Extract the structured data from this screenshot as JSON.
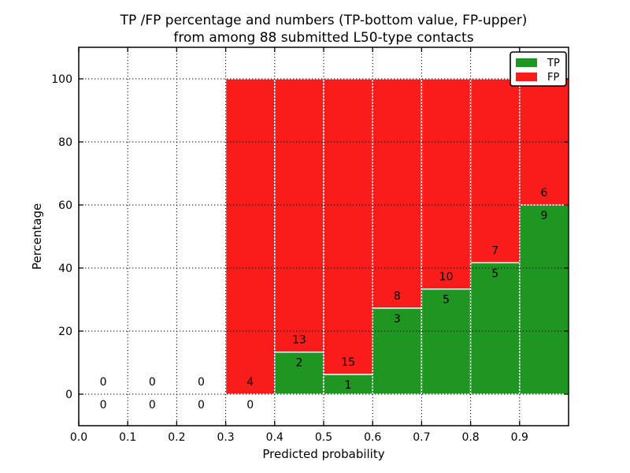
{
  "chart_data": {
    "type": "bar",
    "stacked": true,
    "title_line1": "TP /FP percentage and numbers (TP-bottom value, FP-upper)",
    "title_line2": "from among 88 submitted L50-type contacts",
    "xlabel": "Predicted probability",
    "ylabel": "Percentage",
    "xlim": [
      0.0,
      1.0
    ],
    "ylim": [
      -10,
      110
    ],
    "bin_width": 0.1,
    "bin_starts": [
      0.0,
      0.1,
      0.2,
      0.3,
      0.4,
      0.5,
      0.6,
      0.7,
      0.8,
      0.9
    ],
    "x_tick_values": [
      0.0,
      0.1,
      0.2,
      0.3,
      0.4,
      0.5,
      0.6,
      0.7,
      0.8,
      0.9
    ],
    "x_tick_labels": [
      "0.0",
      "0.1",
      "0.2",
      "0.3",
      "0.4",
      "0.5",
      "0.6",
      "0.7",
      "0.8",
      "0.9"
    ],
    "y_tick_values": [
      0,
      20,
      40,
      60,
      80,
      100
    ],
    "y_tick_labels": [
      "0",
      "20",
      "40",
      "60",
      "80",
      "100"
    ],
    "grid": {
      "style": "dotted",
      "color": "#000000",
      "axes": "both"
    },
    "total_contacts": 88,
    "series": [
      {
        "name": "TP",
        "color": "#1f9621",
        "counts": [
          0,
          0,
          0,
          0,
          2,
          1,
          3,
          5,
          5,
          9
        ],
        "percent": [
          0,
          0,
          0,
          0,
          13.33,
          6.25,
          27.27,
          33.33,
          41.67,
          60.0
        ]
      },
      {
        "name": "FP",
        "color": "#fa1c1a",
        "counts": [
          0,
          0,
          0,
          4,
          13,
          15,
          8,
          10,
          7,
          6
        ],
        "percent": [
          0,
          0,
          0,
          100,
          86.67,
          93.75,
          72.73,
          66.67,
          58.33,
          40.0
        ]
      }
    ],
    "legend": {
      "position": "upper right",
      "entries": [
        {
          "label": "TP",
          "color": "#1f9621"
        },
        {
          "label": "FP",
          "color": "#fa1c1a"
        }
      ]
    }
  }
}
